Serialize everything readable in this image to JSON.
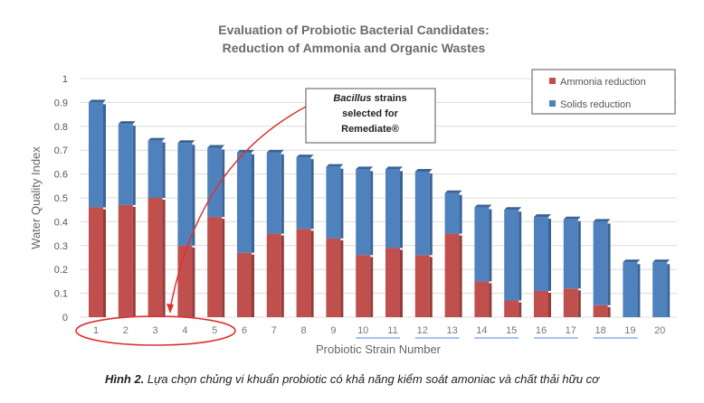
{
  "chart_data": {
    "type": "bar",
    "stacked": true,
    "title": [
      "Evaluation of Probiotic Bacterial Candidates:",
      "Reduction of Ammonia and Organic Wastes"
    ],
    "xlabel": "Probiotic Strain Number",
    "ylabel": "Water Quality Index",
    "ylim": [
      0,
      1
    ],
    "yticks": [
      "0",
      "0.1",
      "0.2",
      "0.3",
      "0.4",
      "0.5",
      "0.6",
      "0.7",
      "0.8",
      "0.9",
      "1"
    ],
    "categories": [
      "1",
      "2",
      "3",
      "4",
      "5",
      "6",
      "7",
      "8",
      "9",
      "10",
      "11",
      "12",
      "13",
      "14",
      "15",
      "16",
      "17",
      "18",
      "19",
      "20"
    ],
    "series": [
      {
        "name": "Ammonia reduction",
        "color": "#c0504d",
        "values": [
          0.46,
          0.47,
          0.5,
          0.3,
          0.42,
          0.27,
          0.35,
          0.37,
          0.33,
          0.26,
          0.29,
          0.26,
          0.35,
          0.15,
          0.07,
          0.11,
          0.12,
          0.05,
          0,
          0
        ]
      },
      {
        "name": "Solids reduction",
        "color": "#4f81bd",
        "values": [
          0.44,
          0.34,
          0.24,
          0.43,
          0.29,
          0.42,
          0.34,
          0.3,
          0.3,
          0.36,
          0.33,
          0.35,
          0.17,
          0.31,
          0.38,
          0.31,
          0.29,
          0.35,
          0.23,
          0.23
        ]
      }
    ],
    "legend": "top-right",
    "grid": true,
    "annotation": {
      "italic": "Bacillus",
      "line1_rest": " strains",
      "line2": "selected for",
      "line3": "Remediate®",
      "highlighted_strains": [
        "1",
        "2",
        "3",
        "4",
        "5"
      ]
    }
  },
  "caption": {
    "label": "Hình 2.",
    "text": " Lựa chọn chủng vi khuẩn probiotic có khả năng kiểm soát amoniac và chất thải hữu cơ"
  }
}
